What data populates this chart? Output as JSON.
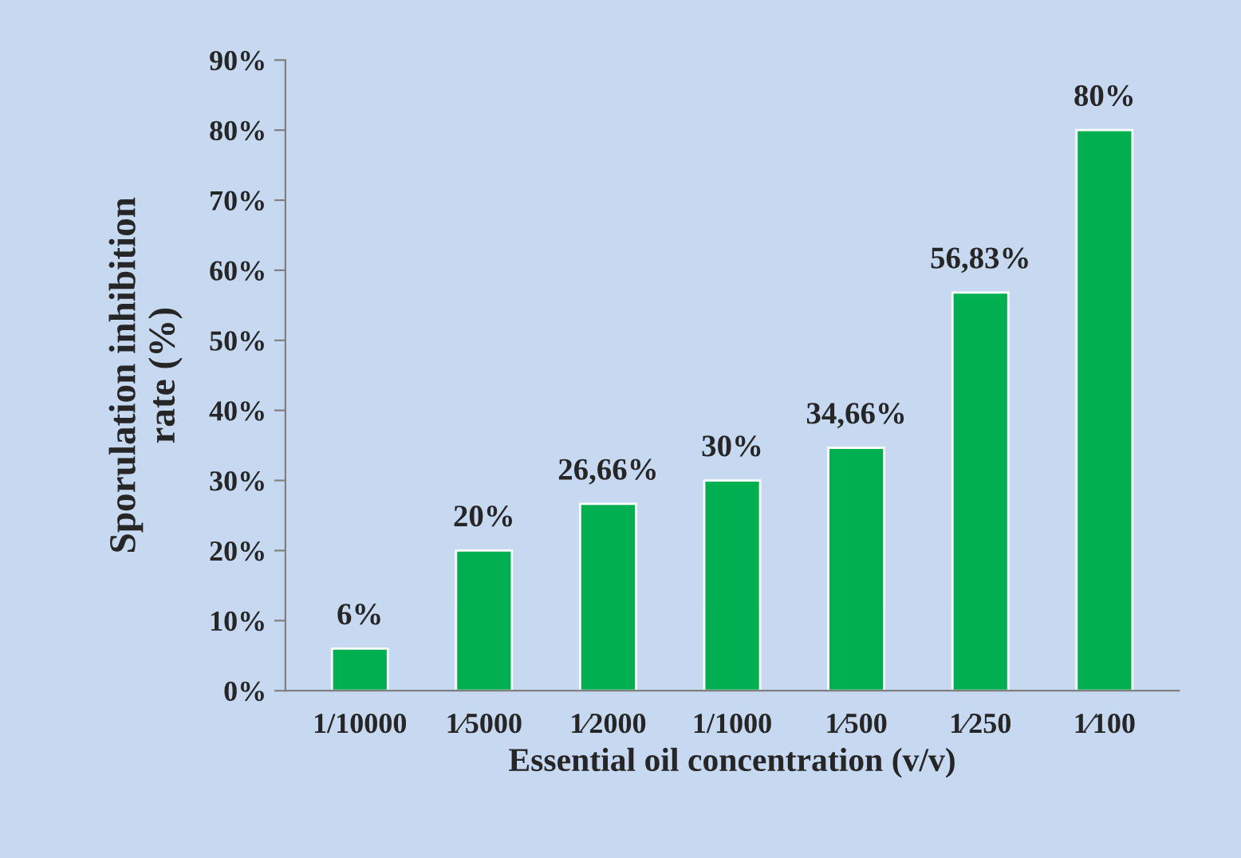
{
  "chart_data": {
    "type": "bar",
    "xlabel": "Essential oil concentration (v/v)",
    "ylabel": "Sporulation inhibition\nrate (%)",
    "categories": [
      "1/10000",
      "1⁄5000",
      "1⁄2000",
      "1/1000",
      "1⁄500",
      "1⁄250",
      "1⁄100"
    ],
    "values": [
      6,
      20,
      26.66,
      30,
      34.66,
      56.83,
      80
    ],
    "value_labels": [
      "6%",
      "20%",
      "26,66%",
      "30%",
      "34,66%",
      "56,83%",
      "80%"
    ],
    "color": "#00b050",
    "ylim": [
      0,
      90
    ],
    "yticks": [
      {
        "value": 0,
        "label": "0%"
      },
      {
        "value": 10,
        "label": "10%"
      },
      {
        "value": 20,
        "label": "20%"
      },
      {
        "value": 30,
        "label": "30%"
      },
      {
        "value": 40,
        "label": "40%"
      },
      {
        "value": 50,
        "label": "50%"
      },
      {
        "value": 60,
        "label": "60%"
      },
      {
        "value": 70,
        "label": "70%"
      },
      {
        "value": 80,
        "label": "80%"
      },
      {
        "value": 90,
        "label": "90%"
      }
    ],
    "grid": false,
    "legend": false
  }
}
